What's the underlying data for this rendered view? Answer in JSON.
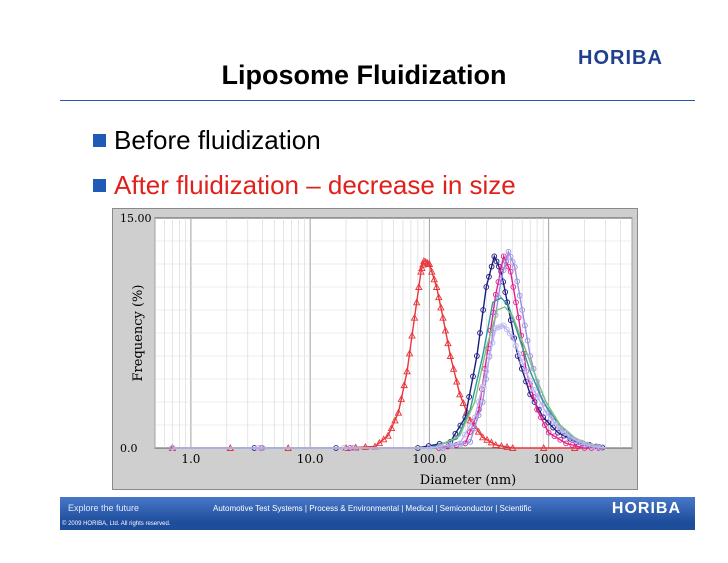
{
  "header": {
    "logo": "HORIBA",
    "title": "Liposome Fluidization"
  },
  "bullets": [
    "Before fluidization",
    "After fluidization – decrease in size"
  ],
  "colors": {
    "accent": "#1f5bb5",
    "highlight": "#e0211b"
  },
  "chart_data": {
    "type": "line",
    "xscale": "log",
    "xlim": [
      0.5,
      5000
    ],
    "ylim": [
      0,
      15
    ],
    "xlabel": "Diameter (nm)",
    "ylabel": "Frequency (%)",
    "x_ticks": [
      "1.0",
      "10.0",
      "100.0",
      "1000"
    ],
    "y_ticks": [
      "15.00",
      "0.0"
    ],
    "grid": true,
    "series": [
      {
        "color": "#e8343a",
        "marker": "triangle",
        "points": [
          [
            0.7,
            0
          ],
          [
            20,
            0
          ],
          [
            35,
            0.1
          ],
          [
            45,
            0.8
          ],
          [
            55,
            2.3
          ],
          [
            65,
            5
          ],
          [
            75,
            8.5
          ],
          [
            85,
            11.5
          ],
          [
            90,
            12.2
          ],
          [
            100,
            12
          ],
          [
            115,
            10.5
          ],
          [
            130,
            8.5
          ],
          [
            150,
            6
          ],
          [
            180,
            3.5
          ],
          [
            220,
            1.8
          ],
          [
            280,
            0.7
          ],
          [
            360,
            0.2
          ],
          [
            500,
            0
          ],
          [
            3000,
            0
          ]
        ]
      },
      {
        "color": "#1a1a80",
        "marker": "circle",
        "points": [
          [
            0.7,
            0
          ],
          [
            80,
            0
          ],
          [
            150,
            0.4
          ],
          [
            200,
            2
          ],
          [
            250,
            6
          ],
          [
            300,
            10.5
          ],
          [
            350,
            12.5
          ],
          [
            400,
            11.5
          ],
          [
            450,
            9.5
          ],
          [
            550,
            6
          ],
          [
            700,
            3.5
          ],
          [
            900,
            2
          ],
          [
            1200,
            1
          ],
          [
            1700,
            0.4
          ],
          [
            2500,
            0.1
          ],
          [
            3000,
            0
          ]
        ]
      },
      {
        "color": "#e0208f",
        "marker": "circle",
        "points": [
          [
            0.7,
            0
          ],
          [
            120,
            0
          ],
          [
            200,
            0.3
          ],
          [
            260,
            2.5
          ],
          [
            310,
            6.5
          ],
          [
            360,
            10
          ],
          [
            420,
            12.5
          ],
          [
            480,
            11.5
          ],
          [
            560,
            8.5
          ],
          [
            650,
            5
          ],
          [
            800,
            2.5
          ],
          [
            1000,
            1
          ],
          [
            1400,
            0.3
          ],
          [
            2000,
            0
          ],
          [
            3000,
            0
          ]
        ]
      },
      {
        "color": "#9a8fe0",
        "marker": "circle",
        "points": [
          [
            0.7,
            0
          ],
          [
            130,
            0
          ],
          [
            220,
            0.4
          ],
          [
            280,
            3
          ],
          [
            340,
            7.5
          ],
          [
            400,
            11
          ],
          [
            460,
            12.8
          ],
          [
            520,
            11.8
          ],
          [
            600,
            9
          ],
          [
            700,
            6
          ],
          [
            850,
            3.5
          ],
          [
            1100,
            1.7
          ],
          [
            1500,
            0.7
          ],
          [
            2000,
            0.2
          ],
          [
            3000,
            0
          ]
        ]
      },
      {
        "color": "#2a9a9a",
        "marker": "none",
        "points": [
          [
            0.7,
            0
          ],
          [
            100,
            0
          ],
          [
            170,
            0.6
          ],
          [
            220,
            2.5
          ],
          [
            280,
            6
          ],
          [
            340,
            9.5
          ],
          [
            400,
            9.8
          ],
          [
            460,
            9.3
          ],
          [
            550,
            7.5
          ],
          [
            700,
            5
          ],
          [
            900,
            3
          ],
          [
            1200,
            1.6
          ],
          [
            1600,
            0.7
          ],
          [
            2200,
            0.2
          ],
          [
            3000,
            0
          ]
        ]
      },
      {
        "color": "#7fc07f",
        "marker": "none",
        "points": [
          [
            0.7,
            0
          ],
          [
            110,
            0
          ],
          [
            180,
            0.8
          ],
          [
            240,
            3
          ],
          [
            300,
            6.5
          ],
          [
            370,
            9
          ],
          [
            430,
            9.2
          ],
          [
            500,
            8.6
          ],
          [
            600,
            7
          ],
          [
            750,
            5
          ],
          [
            950,
            3
          ],
          [
            1250,
            1.5
          ],
          [
            1700,
            0.6
          ],
          [
            2300,
            0.2
          ],
          [
            3000,
            0
          ]
        ]
      },
      {
        "color": "#bcb5ef",
        "marker": "circle",
        "points": [
          [
            0.7,
            0
          ],
          [
            100,
            0
          ],
          [
            180,
            0.3
          ],
          [
            240,
            2
          ],
          [
            300,
            5
          ],
          [
            360,
            7.8
          ],
          [
            420,
            8
          ],
          [
            500,
            7.2
          ],
          [
            600,
            5.6
          ],
          [
            750,
            3.8
          ],
          [
            950,
            2.3
          ],
          [
            1250,
            1.2
          ],
          [
            1700,
            0.5
          ],
          [
            2300,
            0.1
          ],
          [
            3000,
            0
          ]
        ]
      }
    ]
  },
  "footer": {
    "left": "Explore the future",
    "middle": "Automotive Test Systems  |  Process & Environmental  |  Medical  |  Semiconductor  |  Scientific",
    "logo": "HORIBA",
    "copyright": "© 2009 HORIBA, Ltd. All rights reserved."
  }
}
